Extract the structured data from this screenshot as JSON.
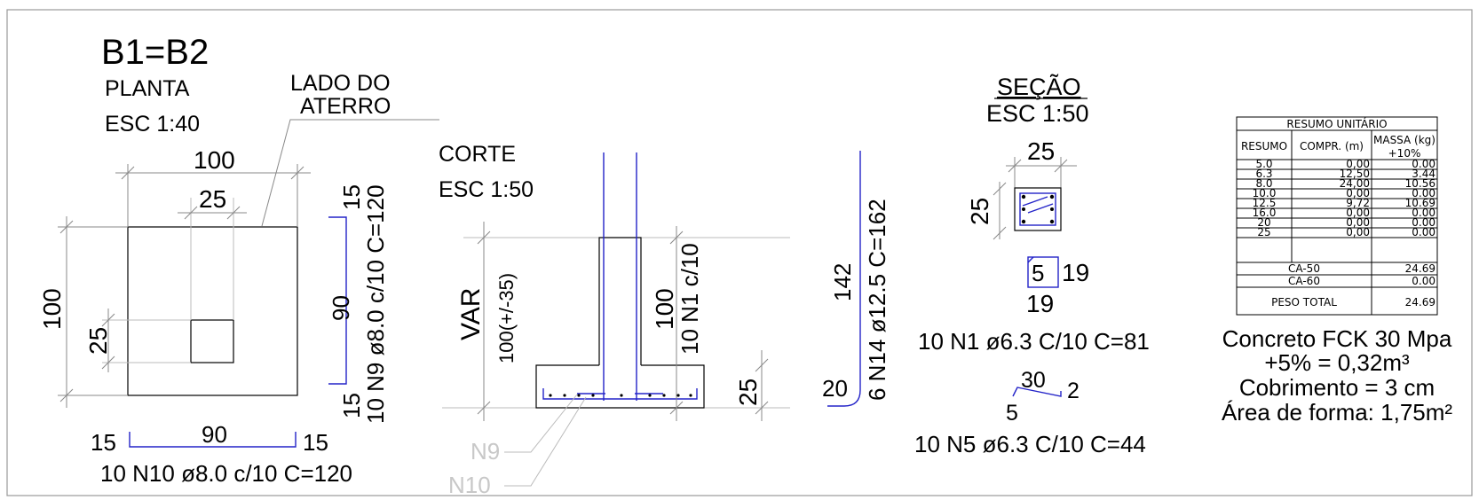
{
  "title": "B1=B2",
  "planta": {
    "label": "PLANTA",
    "scale": "ESC 1:40",
    "side_note_line1": "LADO DO",
    "side_note_line2": "ATERRO",
    "dim_width": "100",
    "dim_height": "100",
    "dim_col_w": "25",
    "dim_col_h": "25",
    "bar_n9_top": "15",
    "bar_n9_mid": "90",
    "bar_n9_bot": "15",
    "bar_n9_spec": "10 N9 ø8.0 c/10 C=120",
    "bar_n10_left": "15",
    "bar_n10_mid": "90",
    "bar_n10_right": "15",
    "bar_n10_spec": "10 N10 ø8.0 c/10 C=120"
  },
  "corte": {
    "label": "CORTE",
    "scale": "ESC 1:50",
    "dim_var": "VAR",
    "dim_var_value": "100(+/-35)",
    "dim_col_h": "100",
    "n1_note": "10 N1 c/10",
    "dim_base": "25",
    "leader_n9": "N9",
    "leader_n10": "N10",
    "bar_n14_long": "142",
    "bar_n14_short": "20",
    "bar_n14_spec": "6 N14 ø12.5 C=162"
  },
  "secao": {
    "label": "SEÇÃO",
    "scale": "ESC 1:50",
    "dim_w": "25",
    "dim_h": "25",
    "stirrup_a": "5",
    "stirrup_b": "19",
    "stirrup_c": "19",
    "n1_spec": "10 N1 ø6.3 C/10 C=81",
    "hook_a": "30",
    "hook_b": "2",
    "hook_c": "5",
    "n5_spec": "10 N5 ø6.3 C/10 C=44"
  },
  "resumo": {
    "title": "RESUMO UNITÁRIO",
    "headers": [
      "RESUMO",
      "COMPR. (m)",
      "MASSA (kg)",
      "+10%"
    ],
    "rows": [
      [
        "5.0",
        "0,00",
        "0.00"
      ],
      [
        "6.3",
        "12,50",
        "3.44"
      ],
      [
        "8.0",
        "24,00",
        "10.56"
      ],
      [
        "10.0",
        "0,00",
        "0.00"
      ],
      [
        "12.5",
        "9,72",
        "10.69"
      ],
      [
        "16.0",
        "0,00",
        "0.00"
      ],
      [
        "20",
        "0,00",
        "0.00"
      ],
      [
        "25",
        "0,00",
        "0.00"
      ]
    ],
    "ca50_label": "CA-50",
    "ca50_value": "24.69",
    "ca60_label": "CA-60",
    "ca60_value": "0.00",
    "total_label": "PESO TOTAL",
    "total_value": "24.69"
  },
  "notes": {
    "line1": "Concreto FCK 30 Mpa",
    "line2": "+5% = 0,32m³",
    "line3": "Cobrimento = 3 cm",
    "line4": "Área de forma: 1,75m²"
  }
}
